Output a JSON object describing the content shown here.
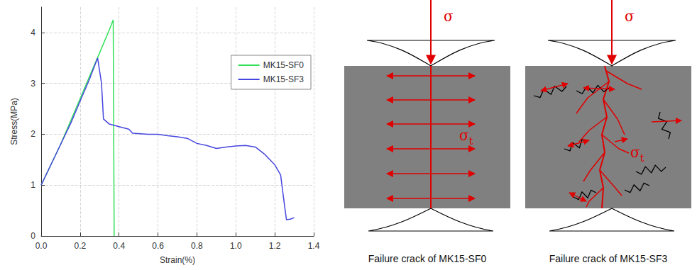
{
  "chart_data": {
    "type": "line",
    "x_label": "Strain(%)",
    "y_label": "Stress(MPa)",
    "xlim": [
      0,
      1.4
    ],
    "xticks": [
      {
        "value": 0,
        "label": "0.0"
      },
      0.2,
      0.4,
      0.6,
      0.8,
      {
        "value": 1,
        "label": "1.0"
      },
      1.2,
      1.4
    ],
    "ylim": [
      0,
      4.5
    ],
    "yticks": [
      0,
      1,
      2,
      3,
      4
    ],
    "grid": true,
    "legend": "upper right",
    "series": [
      {
        "name": "MK15-SF0",
        "color": "#33e05a",
        "x": [
          0,
          0.05,
          0.1,
          0.15,
          0.2,
          0.25,
          0.3,
          0.35,
          0.37,
          0.375
        ],
        "values": [
          1.0,
          1.4,
          1.8,
          2.25,
          2.7,
          3.15,
          3.6,
          4.05,
          4.25,
          0
        ]
      },
      {
        "name": "MK15-SF3",
        "color": "#4646e0",
        "x": [
          0,
          0.05,
          0.1,
          0.15,
          0.2,
          0.25,
          0.29,
          0.31,
          0.32,
          0.35,
          0.4,
          0.45,
          0.47,
          0.55,
          0.6,
          0.65,
          0.7,
          0.75,
          0.8,
          0.85,
          0.9,
          0.95,
          1.0,
          1.05,
          1.1,
          1.15,
          1.2,
          1.23,
          1.25,
          1.26,
          1.28,
          1.3
        ],
        "values": [
          1.0,
          1.4,
          1.8,
          2.2,
          2.65,
          3.1,
          3.5,
          3.0,
          2.3,
          2.2,
          2.15,
          2.1,
          2.02,
          2.0,
          2.0,
          1.97,
          1.95,
          1.92,
          1.82,
          1.78,
          1.72,
          1.75,
          1.77,
          1.78,
          1.75,
          1.6,
          1.4,
          1.2,
          0.6,
          0.32,
          0.33,
          0.36
        ]
      }
    ]
  },
  "diagrams": [
    {
      "caption": "Failure crack of MK15-SF0",
      "load": "σ",
      "tension": {
        "symbol": "σ",
        "subscript": "t"
      }
    },
    {
      "caption": "Failure crack of MK15-SF3",
      "load": "σ",
      "tension": {
        "symbol": "σ",
        "subscript": "t"
      }
    }
  ]
}
